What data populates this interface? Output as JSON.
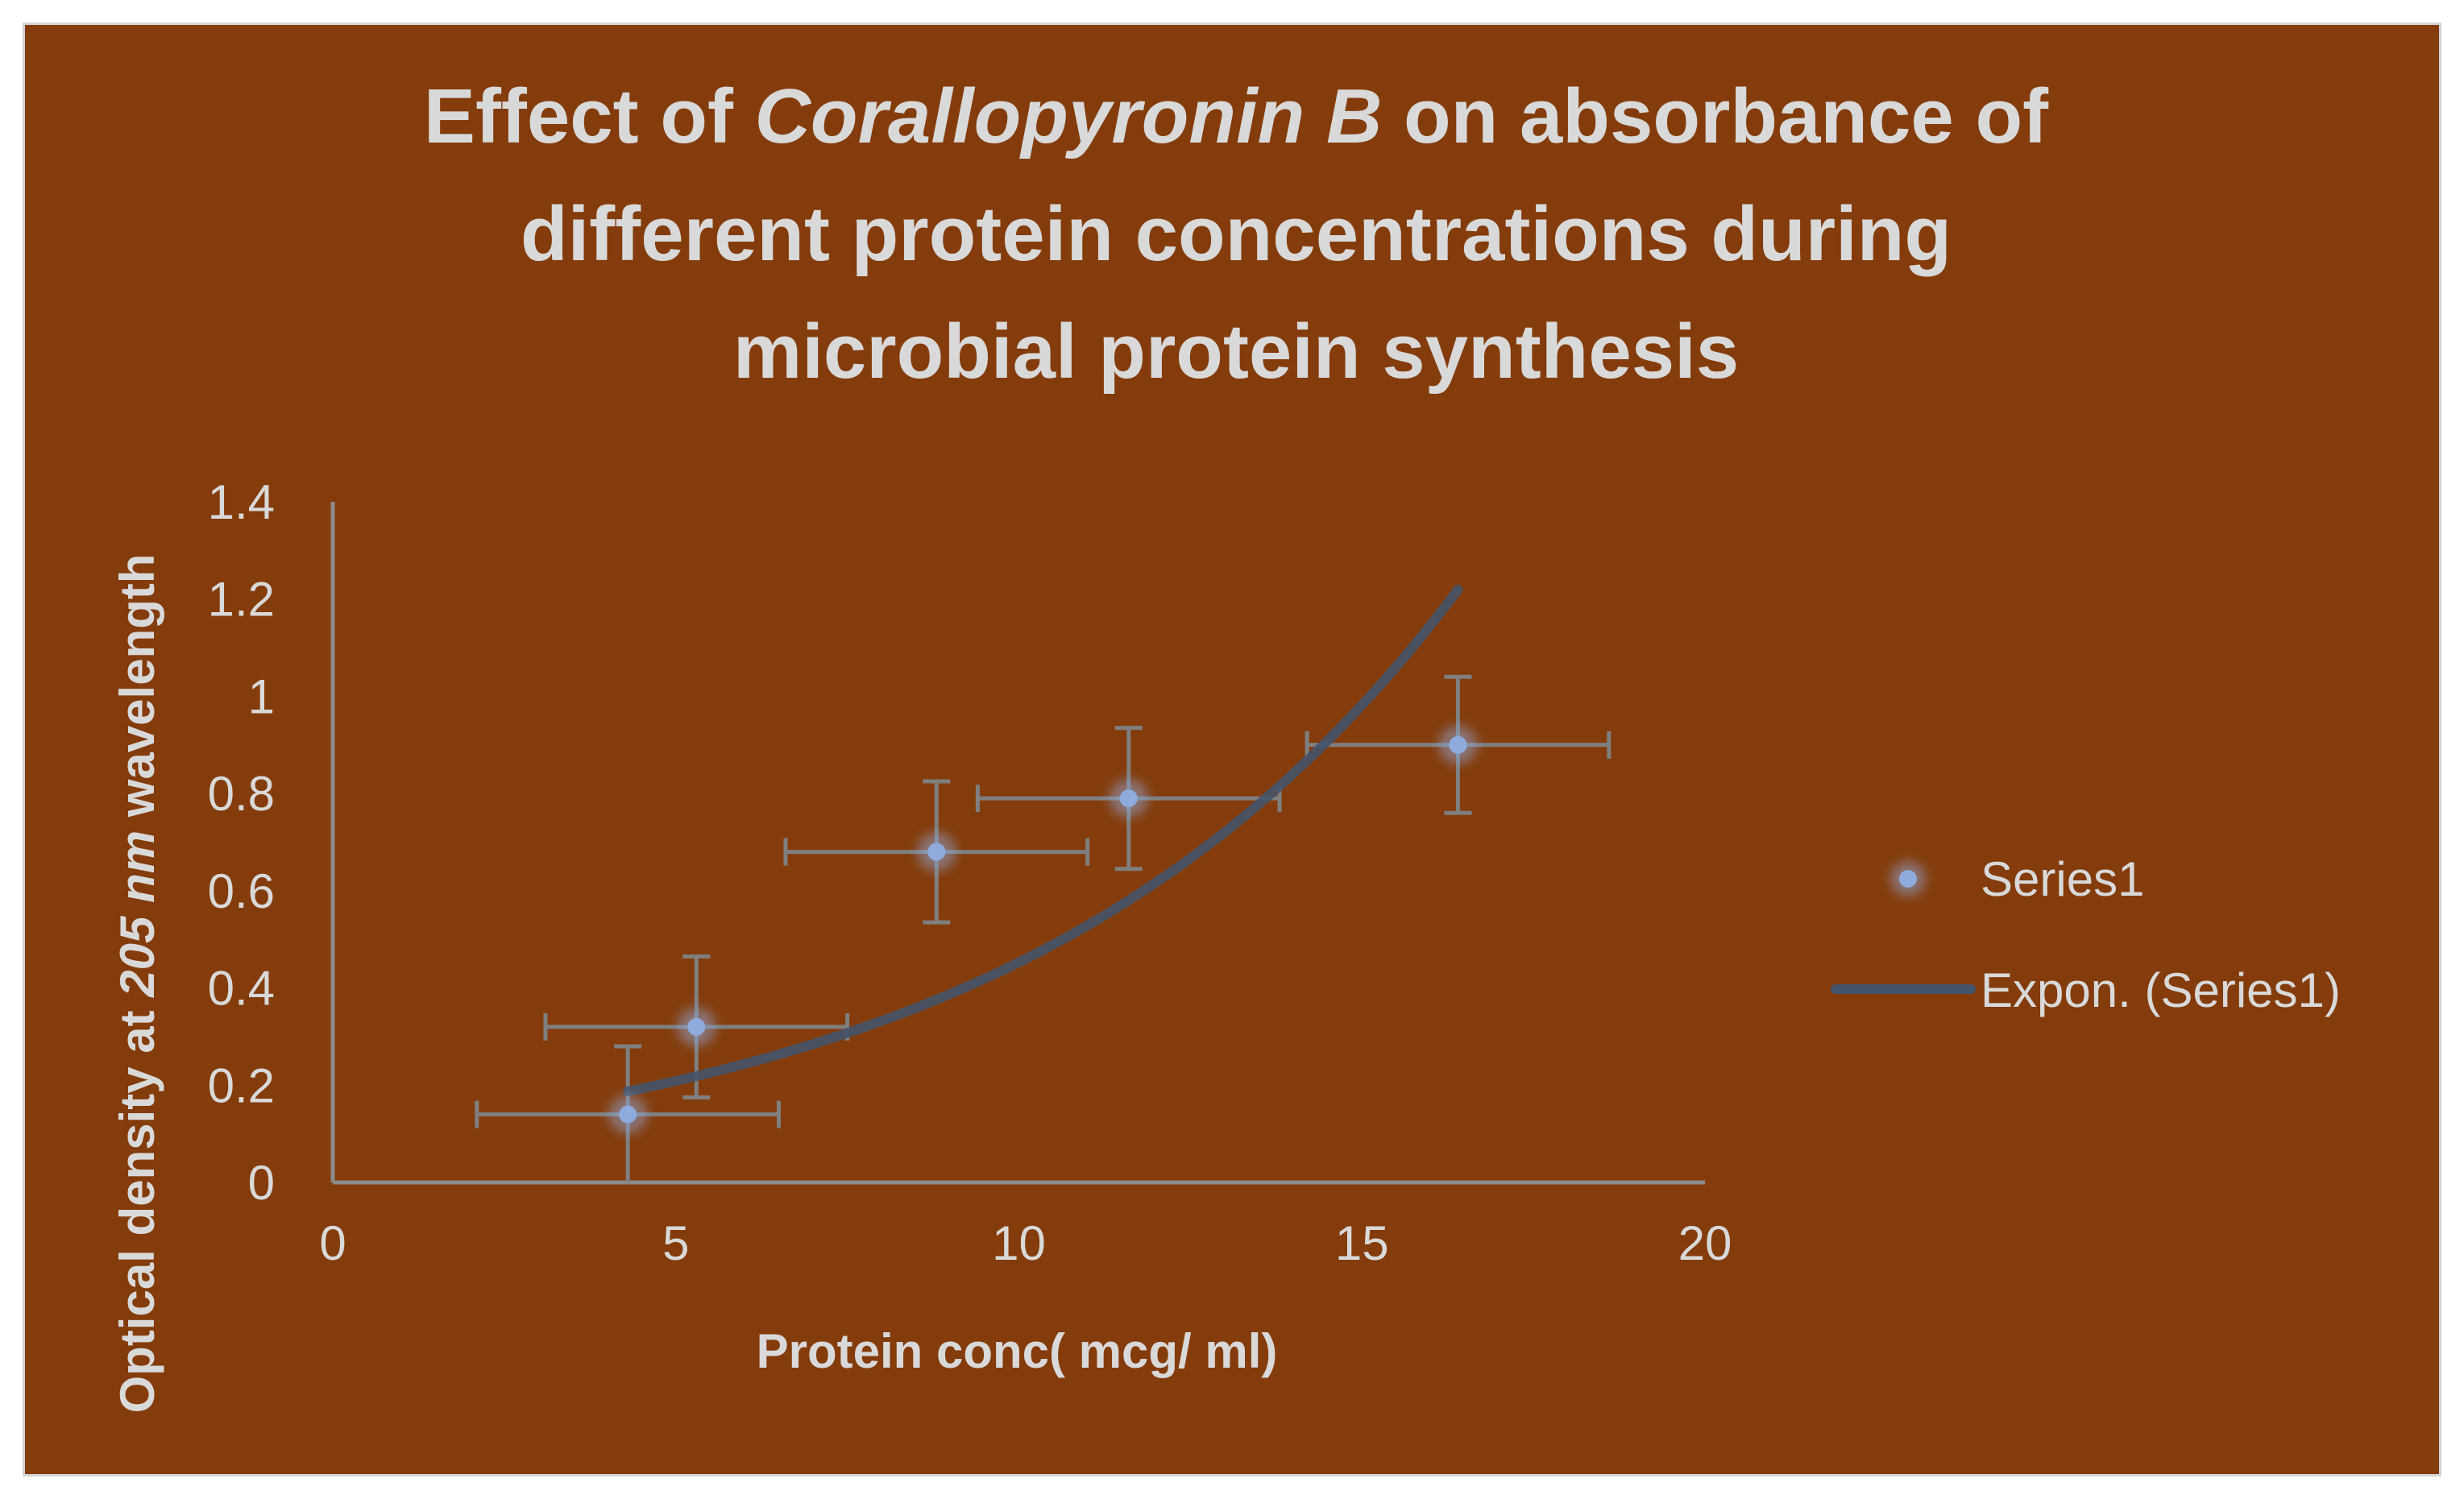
{
  "chart_data": {
    "type": "scatter",
    "title_lines": [
      {
        "before": "Effect of ",
        "italic": "Corallopyronin B",
        "after": " on absorbance of"
      },
      {
        "before": "different protein concentrations during",
        "italic": "",
        "after": ""
      },
      {
        "before": "microbial protein synthesis",
        "italic": "",
        "after": ""
      }
    ],
    "xlabel": "Protein conc( mcg/ ml)",
    "ylabel": {
      "before": "Optical density at ",
      "italic": "205 nm",
      "after": " wavelength"
    },
    "xlim": [
      0,
      20
    ],
    "ylim": [
      0,
      1.4
    ],
    "x_ticks": [
      0,
      5,
      10,
      15,
      20
    ],
    "y_ticks": [
      0,
      0.2,
      0.4,
      0.6,
      0.8,
      1,
      1.2,
      1.4
    ],
    "x_tick_labels": [
      "0",
      "5",
      "10",
      "15",
      "20"
    ],
    "y_tick_labels": [
      "0",
      "0.2",
      "0.4",
      "0.6",
      "0.8",
      "1",
      "1.2",
      "1.4"
    ],
    "series": [
      {
        "name": "Series1",
        "x": [
          4.3,
          5.3,
          8.8,
          11.6,
          16.4
        ],
        "y": [
          0.14,
          0.32,
          0.68,
          0.79,
          0.9
        ],
        "x_error": [
          2.2,
          2.2,
          2.2,
          2.2,
          2.2
        ],
        "y_error": [
          0.14,
          0.145,
          0.145,
          0.145,
          0.14
        ]
      }
    ],
    "trendline": {
      "name": "Expon. (Series1)",
      "type": "exponential",
      "a": 0.0963,
      "b": 0.1548,
      "x_range": [
        4.3,
        16.4
      ]
    },
    "legend": {
      "position": "right",
      "entries": [
        "Series1",
        "Expon. (Series1)"
      ]
    },
    "colors": {
      "background": "#843c0c",
      "border": "#d4d4d4",
      "text": "#d9d9d9",
      "axis": "#8c8c8c",
      "marker": "#8faadc",
      "error_bar": "#7f7f7f",
      "trendline": "#44546a"
    }
  }
}
